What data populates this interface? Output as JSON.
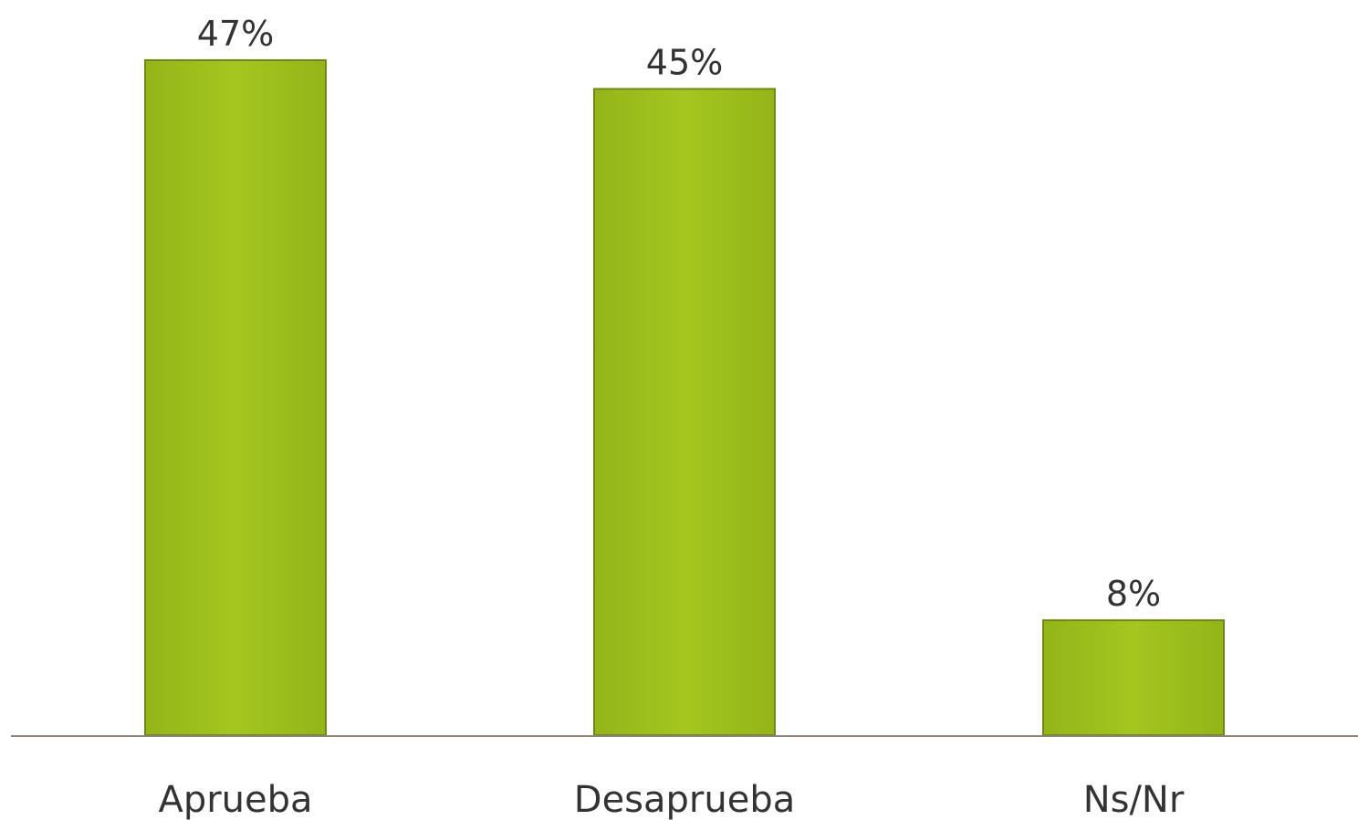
{
  "chart_data": {
    "type": "bar",
    "categories": [
      "Aprueba",
      "Desaprueba",
      "Ns/Nr"
    ],
    "values": [
      47,
      45,
      8
    ],
    "data_labels": [
      "47%",
      "45%",
      "8%"
    ],
    "ylim": [
      0,
      47
    ],
    "grid": false,
    "legend": "none",
    "colors": {
      "bar_fill": "#a2c41e",
      "bar_edge": "#6f8a12",
      "axis_line": "#8c8479",
      "text": "#333333"
    }
  }
}
